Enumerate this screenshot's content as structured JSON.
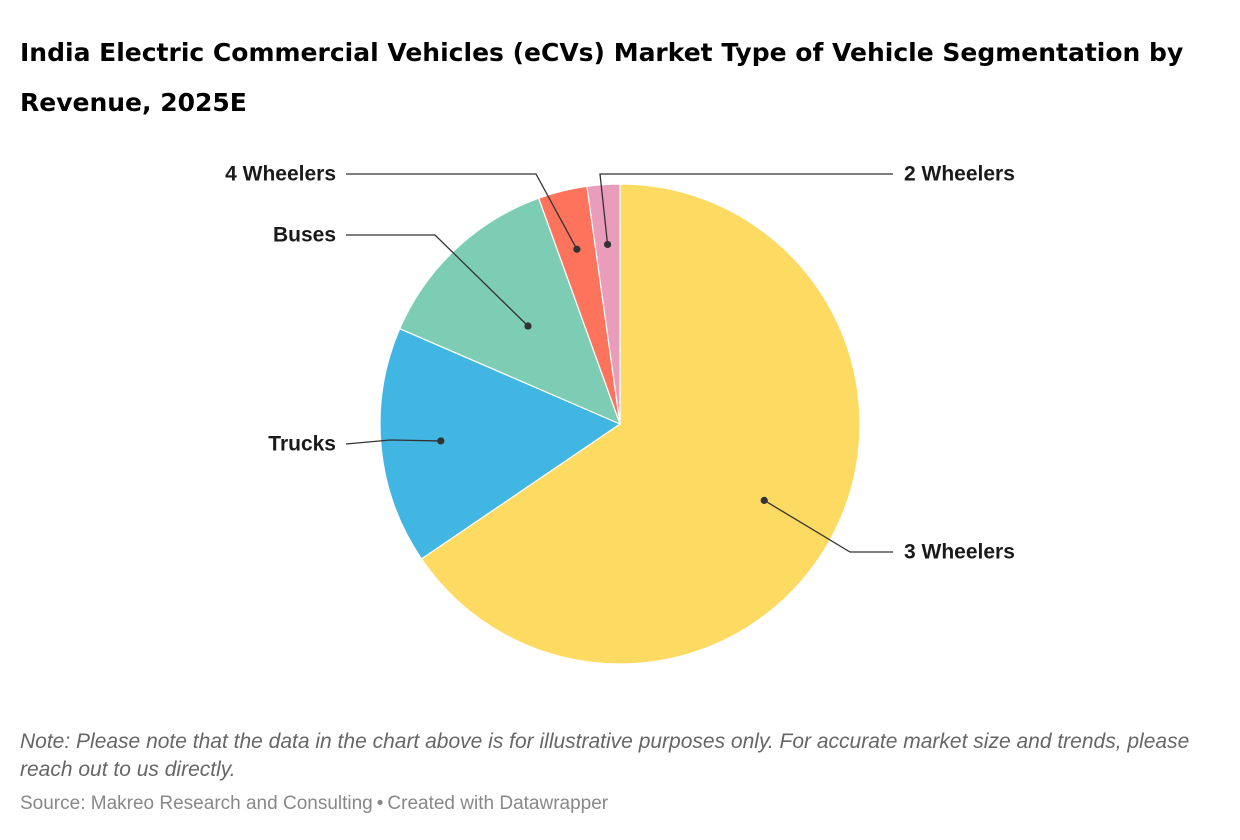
{
  "title": "India Electric Commercial Vehicles (eCVs) Market Type of Vehicle Segmentation by Revenue, 2025E",
  "note": "Note: Please note that the data in the chart above is for illustrative purposes only. For accurate market size and trends, please reach out to us directly.",
  "footer": {
    "source": "Source: Makreo Research and Consulting",
    "separator": "•",
    "credit": "Created with Datawrapper"
  },
  "chart_data": {
    "type": "pie",
    "title": "India Electric Commercial Vehicles (eCVs) Market Type of Vehicle Segmentation by Revenue, 2025E",
    "unit": "%",
    "start_angle": "12 o'clock",
    "direction": "clockwise",
    "legend": "none (direct labels with leader lines)",
    "slices": [
      {
        "label": "3 Wheelers",
        "value": 65.5,
        "color": "#FDDA62"
      },
      {
        "label": "Trucks",
        "value": 16.0,
        "color": "#41B6E2"
      },
      {
        "label": "Buses",
        "value": 13.0,
        "color": "#7DCDB5"
      },
      {
        "label": "4 Wheelers",
        "value": 3.3,
        "color": "#FE735C"
      },
      {
        "label": "2 Wheelers",
        "value": 2.2,
        "color": "#E99DBB"
      }
    ]
  }
}
